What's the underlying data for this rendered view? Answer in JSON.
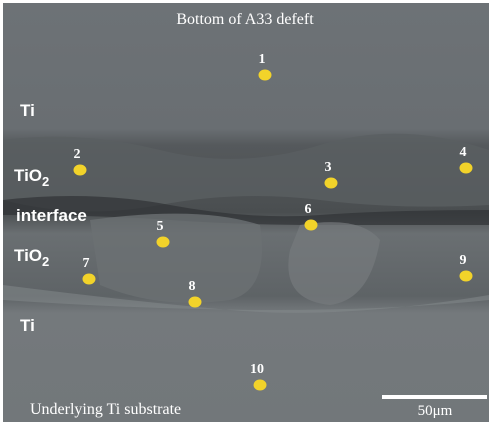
{
  "header": {
    "title": "Bottom of A33 defeft"
  },
  "layers": [
    {
      "text": "Ti"
    },
    {
      "text": "TiO",
      "sub": "2"
    },
    {
      "text": "interface"
    },
    {
      "text": "TiO",
      "sub": "2"
    },
    {
      "text": "Ti"
    }
  ],
  "points": [
    "1",
    "2",
    "3",
    "4",
    "5",
    "6",
    "7",
    "8",
    "9",
    "10"
  ],
  "caption": "Underlying Ti substrate",
  "scale_bar": "50μm"
}
